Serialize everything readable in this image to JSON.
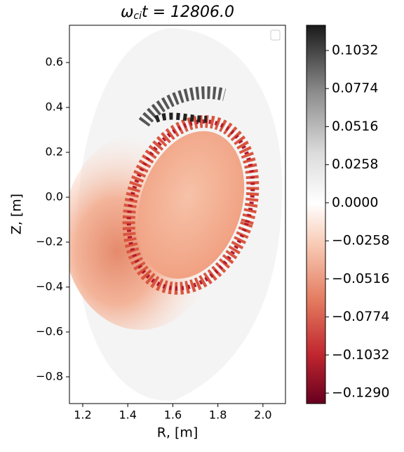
{
  "chart_data": {
    "type": "heatmap",
    "title": {
      "symbol": "ω",
      "subscript": "ci",
      "rest": "t = 12806.0"
    },
    "x_label": "R, [m]",
    "y_label": "Z, [m]",
    "xlim": [
      1.141,
      2.1
    ],
    "ylim": [
      -0.919,
      0.766
    ],
    "xticks": [
      1.2,
      1.4,
      1.6,
      1.8,
      {
        "value": 2.0,
        "label": "2.0"
      }
    ],
    "yticks": [
      0.6,
      0.4,
      0.2,
      {
        "value": 0.0,
        "label": "0.0"
      },
      {
        "value": -0.2,
        "label": "−0.2"
      },
      {
        "value": -0.4,
        "label": "−0.4"
      },
      {
        "value": -0.6,
        "label": "−0.6"
      },
      {
        "value": -0.8,
        "label": "−0.8"
      }
    ],
    "clim": [
      -0.1361,
      0.1203
    ],
    "cticks": [
      0.1032,
      0.0774,
      0.0516,
      0.0258,
      {
        "value": 0.0,
        "label": "0.0000"
      },
      {
        "value": -0.0258,
        "label": "−0.0258"
      },
      {
        "value": -0.0516,
        "label": "−0.0516"
      },
      {
        "value": -0.0774,
        "label": "−0.0774"
      },
      {
        "value": -0.1032,
        "label": "−0.1032"
      },
      {
        "value": -0.129,
        "label": "−0.1290"
      }
    ],
    "colormap": "RdGy"
  }
}
